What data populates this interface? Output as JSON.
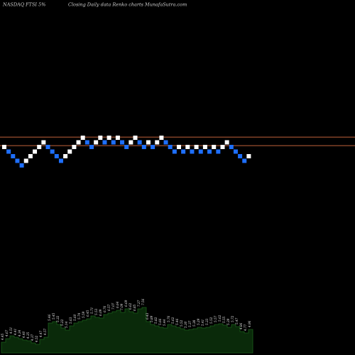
{
  "header": {
    "left": "NASDAQ FTSI 5%",
    "middle": "Closing Daily data  Renko  charts MunafaSutra.com"
  },
  "chart_data": {
    "type": "renko",
    "title": "NASDAQ FTSI 5%",
    "subtitle": "Closing Daily data  Renko  charts MunafaSutra.com",
    "colors": {
      "up_brick": "#ffffff",
      "down_brick": "#1e6fff",
      "reference_line": "#c0623a",
      "volume_fill": "#0a2a0a",
      "volume_line": "#1b5e1b"
    },
    "reference_lines": [
      7.45,
      6.8
    ],
    "bricks": [
      {
        "v": 6.7,
        "dir": "up"
      },
      {
        "v": 6.35,
        "dir": "down"
      },
      {
        "v": 6.0,
        "dir": "down"
      },
      {
        "v": 5.65,
        "dir": "down"
      },
      {
        "v": 5.3,
        "dir": "down"
      },
      {
        "v": 5.65,
        "dir": "up"
      },
      {
        "v": 6.0,
        "dir": "up"
      },
      {
        "v": 6.35,
        "dir": "up"
      },
      {
        "v": 6.7,
        "dir": "up"
      },
      {
        "v": 7.05,
        "dir": "up"
      },
      {
        "v": 6.7,
        "dir": "down"
      },
      {
        "v": 6.35,
        "dir": "down"
      },
      {
        "v": 6.0,
        "dir": "down"
      },
      {
        "v": 5.65,
        "dir": "down"
      },
      {
        "v": 6.0,
        "dir": "up"
      },
      {
        "v": 6.35,
        "dir": "up"
      },
      {
        "v": 6.7,
        "dir": "up"
      },
      {
        "v": 7.05,
        "dir": "up"
      },
      {
        "v": 7.4,
        "dir": "up"
      },
      {
        "v": 7.05,
        "dir": "down"
      },
      {
        "v": 6.7,
        "dir": "down"
      },
      {
        "v": 7.05,
        "dir": "up"
      },
      {
        "v": 7.4,
        "dir": "up"
      },
      {
        "v": 7.05,
        "dir": "down"
      },
      {
        "v": 7.4,
        "dir": "up"
      },
      {
        "v": 7.05,
        "dir": "down"
      },
      {
        "v": 7.4,
        "dir": "up"
      },
      {
        "v": 7.05,
        "dir": "down"
      },
      {
        "v": 6.7,
        "dir": "down"
      },
      {
        "v": 7.05,
        "dir": "up"
      },
      {
        "v": 7.4,
        "dir": "up"
      },
      {
        "v": 7.05,
        "dir": "down"
      },
      {
        "v": 6.7,
        "dir": "down"
      },
      {
        "v": 7.05,
        "dir": "up"
      },
      {
        "v": 6.7,
        "dir": "down"
      },
      {
        "v": 7.05,
        "dir": "up"
      },
      {
        "v": 7.4,
        "dir": "up"
      },
      {
        "v": 7.05,
        "dir": "down"
      },
      {
        "v": 6.7,
        "dir": "down"
      },
      {
        "v": 6.35,
        "dir": "down"
      },
      {
        "v": 6.7,
        "dir": "up"
      },
      {
        "v": 6.35,
        "dir": "down"
      },
      {
        "v": 6.7,
        "dir": "up"
      },
      {
        "v": 6.35,
        "dir": "down"
      },
      {
        "v": 6.7,
        "dir": "up"
      },
      {
        "v": 6.35,
        "dir": "down"
      },
      {
        "v": 6.7,
        "dir": "up"
      },
      {
        "v": 6.35,
        "dir": "down"
      },
      {
        "v": 6.7,
        "dir": "up"
      },
      {
        "v": 6.35,
        "dir": "down"
      },
      {
        "v": 6.7,
        "dir": "up"
      },
      {
        "v": 7.05,
        "dir": "up"
      },
      {
        "v": 6.7,
        "dir": "down"
      },
      {
        "v": 6.35,
        "dir": "down"
      },
      {
        "v": 6.0,
        "dir": "down"
      },
      {
        "v": 5.65,
        "dir": "down"
      },
      {
        "v": 6.0,
        "dir": "up"
      }
    ],
    "volume_labels": [
      "4.45",
      "4.67",
      "4.51",
      "4.41",
      "4.34",
      "4.40",
      "4.35",
      "4.37",
      "4.52",
      "4.47",
      "4.57",
      "5.46",
      "5.45",
      "5.32",
      "5.22",
      "5.14",
      "5.63",
      "5.60",
      "5.74",
      "5.59",
      "6.45",
      "5.71",
      "5.53",
      "6.09",
      "6.76",
      "6.57",
      "7.07",
      "6.64",
      "7.09",
      "6.69",
      "6.62",
      "6.85",
      "7.27",
      "7.56",
      "6.43",
      "5.89",
      "5.82",
      "5.66",
      "5.44",
      "5.76",
      "5.62",
      "5.46",
      "5.52",
      "5.30",
      "5.37",
      "5.38",
      "5.29",
      "5.41",
      "5.33",
      "5.52",
      "5.57",
      "5.62",
      "5.55",
      "5.39",
      "5.72",
      "5.47",
      "4.86",
      "4.77",
      "4.96"
    ],
    "volume_heights": [
      15,
      20,
      24,
      22,
      20,
      18,
      17,
      14,
      12,
      19,
      22,
      42,
      44,
      40,
      35,
      32,
      38,
      42,
      44,
      46,
      48,
      52,
      50,
      49,
      54,
      56,
      58,
      60,
      57,
      62,
      58,
      56,
      62,
      64,
      44,
      40,
      38,
      36,
      35,
      40,
      38,
      36,
      34,
      32,
      33,
      34,
      36,
      35,
      36,
      38,
      40,
      41,
      39,
      36,
      40,
      37,
      30,
      28,
      33
    ]
  }
}
